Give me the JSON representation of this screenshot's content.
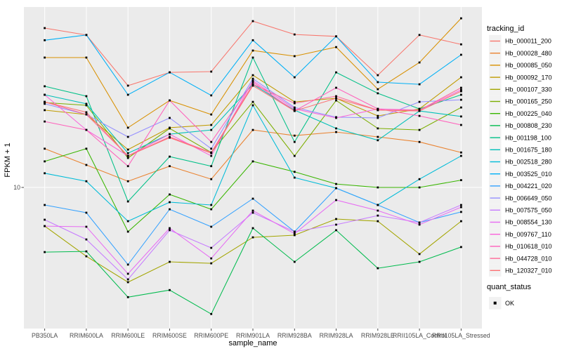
{
  "figure": {
    "y_tick_label": "10",
    "quant_ok_label": "OK"
  },
  "legend": {
    "tracking_title": "tracking_id",
    "quant_title": "quant_status",
    "quant_items": [
      {
        "label": "OK",
        "marker": "black-square"
      }
    ]
  },
  "colors": {
    "panel_bg": "#EBEBEB",
    "grid": "#FFFFFF",
    "axis_text": "#4D4D4D",
    "tick_mark": "#333333",
    "legend_key_bg": "#F2F2F2",
    "point": "#000000",
    "background": "#FFFFFF"
  },
  "chart_data": {
    "type": "line",
    "title": "",
    "xlabel": "sample_name",
    "ylabel": "FPKM + 1",
    "yscale": "log10",
    "ylim": [
      1,
      230
    ],
    "ytick_labels": [
      "10"
    ],
    "grid": "single-horizontal-at-10-plus-vertical-per-category",
    "legend_position": "right",
    "point_marker": "black-square",
    "categories": [
      "PB350LA",
      "RRIM600LA",
      "RRIM600LE",
      "RRIM600SE",
      "RRIM600PE",
      "RRIM901LA",
      "RRIM928BA",
      "RRIM928LA",
      "RRIM928LE",
      "RRII105LA_Control",
      "RRII105LA_Stressed"
    ],
    "series": [
      {
        "name": "Hb_000011_200",
        "color": "#F8766D",
        "values": [
          146,
          130,
          55.4,
          69.3,
          70.2,
          164,
          131,
          127,
          66.1,
          130,
          111
        ]
      },
      {
        "name": "Hb_000028_480",
        "color": "#EA8331",
        "values": [
          19.2,
          14.6,
          11.1,
          14.3,
          11.5,
          26.3,
          23.9,
          25.4,
          23.4,
          21.5,
          18
        ]
      },
      {
        "name": "Hb_000085_050",
        "color": "#D89000",
        "values": [
          88.9,
          88.9,
          27.3,
          43.2,
          34.1,
          100,
          91,
          106,
          52.2,
          81.8,
          172
        ]
      },
      {
        "name": "Hb_000092_170",
        "color": "#C09B00",
        "values": [
          36.7,
          34.1,
          18.9,
          27.3,
          28.6,
          66.1,
          42.2,
          44.8,
          33.3,
          37.5,
          63.8
        ]
      },
      {
        "name": "Hb_000107_330",
        "color": "#A3A500",
        "values": [
          5.22,
          3.14,
          2.03,
          2.86,
          2.79,
          4.32,
          4.48,
          5.88,
          5.67,
          3.26,
          5.67
        ]
      },
      {
        "name": "Hb_000165_250",
        "color": "#7CAE00",
        "values": [
          41.7,
          39.8,
          16.4,
          27,
          18,
          42.2,
          17,
          43.2,
          27,
          26.3,
          38.4
        ]
      },
      {
        "name": "Hb_000225_040",
        "color": "#39B600",
        "values": [
          15.5,
          19.2,
          4.75,
          8.89,
          6.93,
          15.5,
          13,
          10.6,
          10,
          10,
          11.3
        ]
      },
      {
        "name": "Hb_000808_230",
        "color": "#00BB4E",
        "values": [
          3.37,
          3.41,
          1.58,
          1.78,
          1.19,
          5.04,
          2.86,
          4.87,
          2.57,
          2.86,
          3.67
        ]
      },
      {
        "name": "Hb_001198_100",
        "color": "#00C087",
        "values": [
          54.8,
          46.4,
          7.9,
          16.8,
          14.3,
          88.9,
          21.5,
          69.3,
          48.7,
          37.5,
          47.5
        ]
      },
      {
        "name": "Hb_001675_180",
        "color": "#00C0B8",
        "values": [
          47.5,
          40.8,
          17.8,
          24.5,
          26.3,
          56.7,
          36.7,
          27,
          22.1,
          36.2,
          33
        ]
      },
      {
        "name": "Hb_002518_280",
        "color": "#00BCD8",
        "values": [
          12.7,
          11.1,
          5.67,
          7.8,
          7.44,
          39.8,
          11.8,
          9.88,
          7.44,
          11.5,
          17
        ]
      },
      {
        "name": "Hb_003525_010",
        "color": "#00B0F6",
        "values": [
          119,
          130,
          47.5,
          69.3,
          47,
          119,
          63.8,
          127,
          58.8,
          56.7,
          93.2
        ]
      },
      {
        "name": "Hb_004221_020",
        "color": "#35A2FF",
        "values": [
          7.44,
          6.54,
          2.73,
          6.93,
          5.16,
          8.28,
          4.75,
          9.88,
          7.44,
          5.54,
          6.62
        ]
      },
      {
        "name": "Hb_006649_050",
        "color": "#9590FF",
        "values": [
          40.8,
          34.1,
          23.4,
          32.2,
          19.2,
          62.3,
          38.4,
          32.6,
          32.2,
          42.2,
          43.7
        ]
      },
      {
        "name": "Hb_007575_050",
        "color": "#C77CFF",
        "values": [
          5.81,
          4.17,
          2.13,
          4.87,
          3.62,
          6.54,
          4.75,
          5.35,
          6.23,
          5.54,
          7.44
        ]
      },
      {
        "name": "Hb_008554_130",
        "color": "#E76BF3",
        "values": [
          5.22,
          5.16,
          2.34,
          5.04,
          3.03,
          6.77,
          4.59,
          8.09,
          6.77,
          5.35,
          7.18
        ]
      },
      {
        "name": "Hb_009767_110",
        "color": "#FA62DB",
        "values": [
          47.5,
          26.3,
          17,
          24.5,
          17,
          60.2,
          37.5,
          32.2,
          37.5,
          36.7,
          51.6
        ]
      },
      {
        "name": "Hb_010618_010",
        "color": "#FF62BC",
        "values": [
          30.3,
          26.3,
          14.3,
          43.2,
          21.5,
          58.8,
          36.2,
          53.5,
          37.5,
          33.3,
          28.6
        ]
      },
      {
        "name": "Hb_044728_010",
        "color": "#FF6A98",
        "values": [
          42.2,
          34.1,
          17,
          23.4,
          18,
          56.7,
          41.2,
          46.4,
          36.7,
          36.7,
          53.5
        ]
      },
      {
        "name": "Hb_120327_010",
        "color": "#FC7173",
        "values": [
          42.2,
          35.4,
          17,
          23.1,
          17.8,
          55.4,
          36.2,
          44.8,
          36.7,
          36.2,
          50.4
        ]
      }
    ]
  }
}
